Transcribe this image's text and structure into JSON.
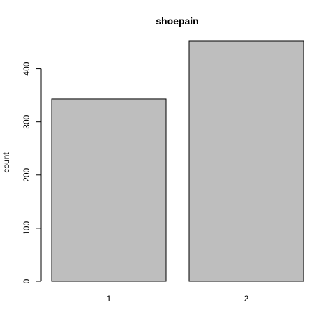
{
  "chart_data": {
    "type": "bar",
    "title": "shoepain",
    "xlabel": "",
    "ylabel": "count",
    "categories": [
      "1",
      "2"
    ],
    "values": [
      343,
      452
    ],
    "ylim": [
      0,
      452
    ],
    "yticks": [
      0,
      100,
      200,
      300,
      400
    ],
    "bar_color": "#bebebe",
    "grid": false,
    "legend": "none"
  }
}
